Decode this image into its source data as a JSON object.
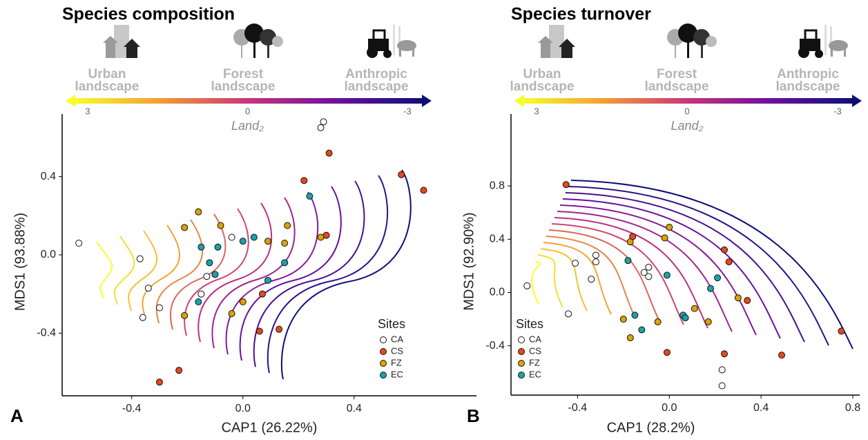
{
  "chart_data": [
    {
      "type": "scatter",
      "panel": "A",
      "title": "Species composition",
      "landscapes": [
        "Urban landscape",
        "Forest landscape",
        "Anthropic landscape"
      ],
      "colorbar_label": "Land₂",
      "colorbar_ticks": [
        3,
        0,
        -3
      ],
      "x_label": "CAP1 (26.22%)",
      "y_label": "MDS1 (93.88%)",
      "xlim": [
        -0.65,
        0.84
      ],
      "ylim": [
        -0.72,
        0.72
      ],
      "xticks": [
        -0.4,
        {
          "value": 0,
          "label": "0.0"
        },
        0.4
      ],
      "yticks": [
        -0.4,
        {
          "value": 0,
          "label": "0.0"
        },
        0.4
      ],
      "legend_title": "Sites",
      "legend_position": "bottom-right",
      "series": [
        {
          "name": "CA",
          "color": "#ffffff",
          "x": [
            -0.59,
            -0.37,
            -0.34,
            -0.36,
            -0.3,
            -0.04,
            -0.13,
            -0.15,
            0.28,
            0.29
          ],
          "y": [
            0.06,
            -0.02,
            -0.17,
            -0.32,
            -0.27,
            0.09,
            -0.11,
            -0.2,
            0.65,
            0.68
          ]
        },
        {
          "name": "CS",
          "color": "#e8471c",
          "x": [
            0.31,
            0.22,
            0.57,
            0.65,
            0.3,
            0.07,
            0.06,
            0.13,
            -0.23,
            -0.3
          ],
          "y": [
            0.52,
            0.38,
            0.41,
            0.33,
            0.1,
            -0.2,
            -0.39,
            -0.38,
            -0.59,
            -0.65
          ]
        },
        {
          "name": "FZ",
          "color": "#d9a400",
          "x": [
            -0.21,
            -0.16,
            -0.08,
            0.09,
            0.16,
            0.15,
            0.28,
            0.0,
            -0.04,
            -0.21
          ],
          "y": [
            0.14,
            0.22,
            0.15,
            0.07,
            0.15,
            0.06,
            0.09,
            -0.24,
            -0.3,
            -0.31
          ]
        },
        {
          "name": "EC",
          "color": "#1aa3a8",
          "x": [
            0.24,
            0.04,
            0.0,
            -0.15,
            -0.09,
            -0.12,
            -0.1,
            -0.16,
            0.09,
            0.15
          ],
          "y": [
            0.3,
            0.09,
            0.07,
            0.04,
            0.04,
            -0.04,
            -0.1,
            -0.24,
            -0.13,
            -0.04
          ]
        }
      ]
    },
    {
      "type": "scatter",
      "panel": "B",
      "title": "Species turnover",
      "landscapes": [
        "Urban landscape",
        "Forest landscape",
        "Anthropic landscape"
      ],
      "colorbar_label": "Land₂",
      "colorbar_ticks": [
        3,
        0,
        -3
      ],
      "x_label": "CAP1 (28.2%)",
      "y_label": "MDS1 (92.90%)",
      "xlim": [
        -0.69,
        0.83
      ],
      "ylim": [
        -0.77,
        1.34
      ],
      "xticks": [
        -0.4,
        {
          "value": 0,
          "label": "0.0"
        },
        0.4,
        0.8
      ],
      "yticks": [
        -0.4,
        {
          "value": 0,
          "label": "0.0"
        },
        0.4,
        0.8
      ],
      "legend_title": "Sites",
      "legend_position": "bottom-left",
      "series": [
        {
          "name": "CA",
          "color": "#ffffff",
          "x": [
            -0.62,
            -0.41,
            -0.32,
            -0.32,
            -0.34,
            -0.44,
            -0.09,
            -0.11,
            -0.09,
            0.23,
            0.23
          ],
          "y": [
            0.05,
            0.22,
            0.28,
            0.23,
            0.1,
            -0.16,
            0.19,
            0.15,
            0.12,
            -0.58,
            -0.7
          ]
        },
        {
          "name": "CS",
          "color": "#e8471c",
          "x": [
            -0.45,
            -0.16,
            0.24,
            0.26,
            0.34,
            -0.01,
            0.24,
            0.49,
            0.75
          ],
          "y": [
            0.81,
            0.42,
            0.32,
            0.23,
            -0.06,
            -0.45,
            -0.46,
            -0.47,
            -0.29
          ]
        },
        {
          "name": "FZ",
          "color": "#d9a400",
          "x": [
            0.0,
            -0.02,
            -0.17,
            -0.2,
            -0.17,
            -0.05,
            0.07,
            0.11,
            0.17,
            0.3
          ],
          "y": [
            0.49,
            0.41,
            0.38,
            -0.2,
            -0.34,
            -0.22,
            -0.19,
            -0.12,
            -0.22,
            -0.04
          ]
        },
        {
          "name": "EC",
          "color": "#1aa3a8",
          "x": [
            -0.18,
            -0.01,
            0.18,
            0.21,
            -0.15,
            -0.12,
            0.06,
            0.07
          ],
          "y": [
            0.24,
            0.13,
            0.03,
            0.11,
            -0.17,
            -0.28,
            -0.17,
            -0.19
          ]
        }
      ]
    }
  ]
}
